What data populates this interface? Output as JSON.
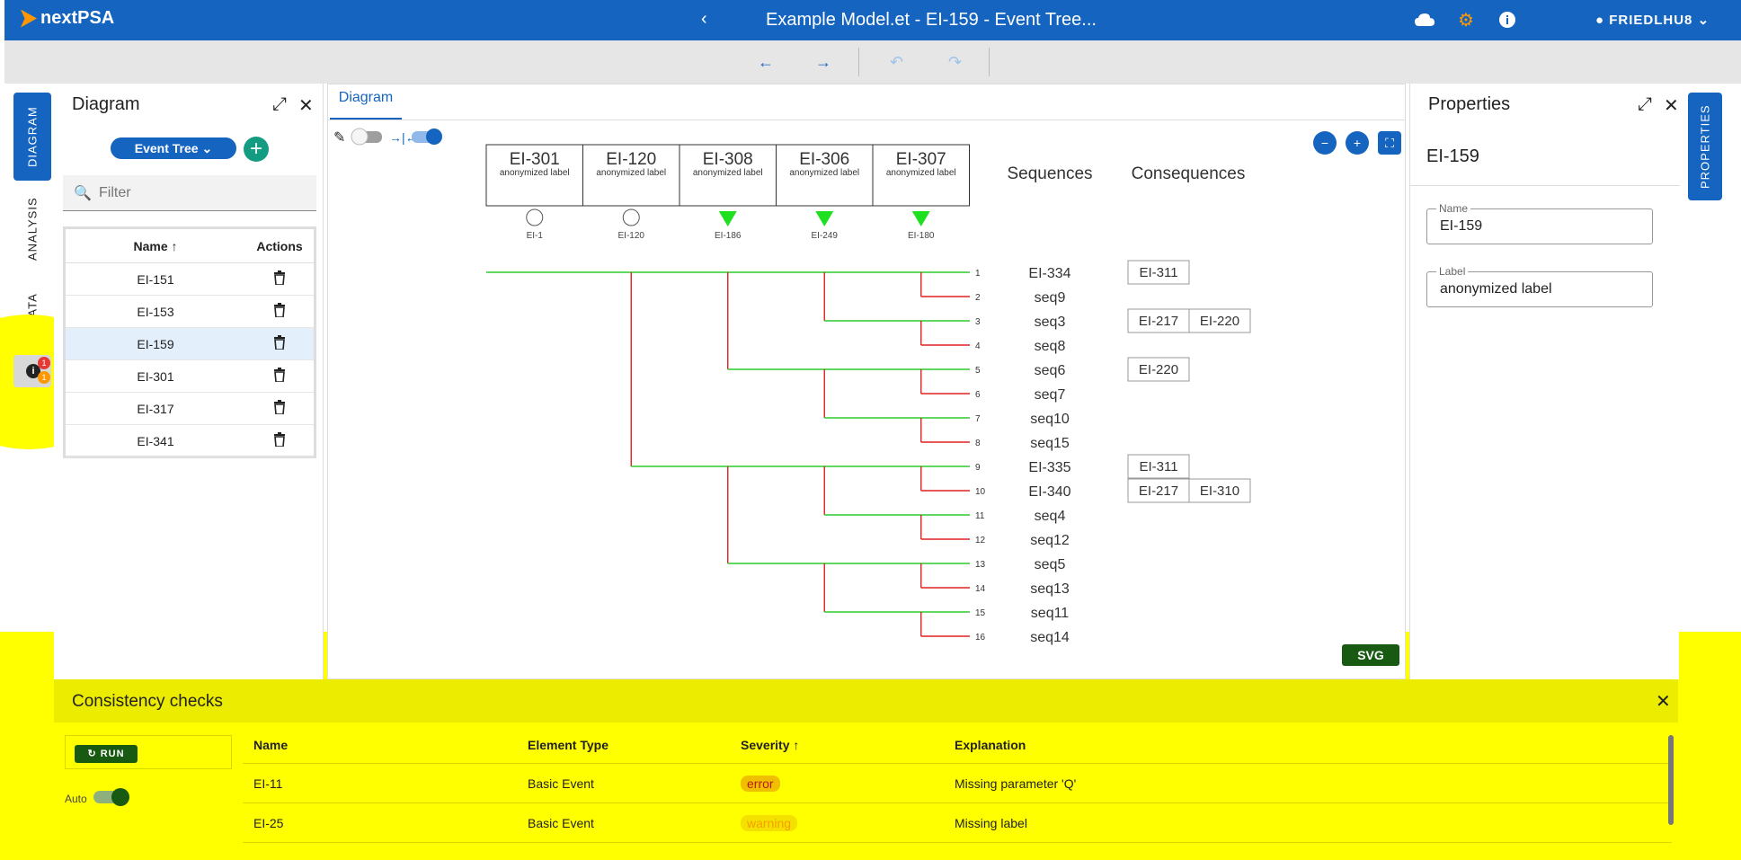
{
  "app": {
    "name": "nextPSA",
    "title": "Example Model.et - EI-159 - Event Tree...",
    "user": "FRIEDLHU8"
  },
  "left_tabs": [
    "DIAGRAM",
    "ANALYSIS",
    "DATA"
  ],
  "info_badges": {
    "errors": "1",
    "warnings": "1"
  },
  "diagram_panel": {
    "title": "Diagram",
    "type_button": "Event Tree",
    "filter_placeholder": "Filter",
    "columns": {
      "name": "Name",
      "actions": "Actions"
    },
    "rows": [
      "EI-151",
      "EI-153",
      "EI-159",
      "EI-301",
      "EI-317",
      "EI-341"
    ],
    "selected": "EI-159"
  },
  "canvas": {
    "tab": "Diagram",
    "headers": [
      {
        "id": "EI-301",
        "label": "anonymized label"
      },
      {
        "id": "EI-120",
        "label": "anonymized label"
      },
      {
        "id": "EI-308",
        "label": "anonymized label"
      },
      {
        "id": "EI-306",
        "label": "anonymized label"
      },
      {
        "id": "EI-307",
        "label": "anonymized label"
      }
    ],
    "gate_labels": [
      "EI-1",
      "EI-120",
      "EI-186",
      "EI-249",
      "EI-180"
    ],
    "sequences_title": "Sequences",
    "consequences_title": "Consequences",
    "sequences": [
      {
        "n": "1",
        "name": "EI-334",
        "cons": [
          "EI-311"
        ]
      },
      {
        "n": "2",
        "name": "seq9",
        "cons": []
      },
      {
        "n": "3",
        "name": "seq3",
        "cons": [
          "EI-217",
          "EI-220"
        ]
      },
      {
        "n": "4",
        "name": "seq8",
        "cons": []
      },
      {
        "n": "5",
        "name": "seq6",
        "cons": [
          "EI-220"
        ]
      },
      {
        "n": "6",
        "name": "seq7",
        "cons": []
      },
      {
        "n": "7",
        "name": "seq10",
        "cons": []
      },
      {
        "n": "8",
        "name": "seq15",
        "cons": []
      },
      {
        "n": "9",
        "name": "EI-335",
        "cons": [
          "EI-311"
        ]
      },
      {
        "n": "10",
        "name": "EI-340",
        "cons": [
          "EI-217",
          "EI-310"
        ]
      },
      {
        "n": "11",
        "name": "seq4",
        "cons": []
      },
      {
        "n": "12",
        "name": "seq12",
        "cons": []
      },
      {
        "n": "13",
        "name": "seq5",
        "cons": []
      },
      {
        "n": "14",
        "name": "seq13",
        "cons": []
      },
      {
        "n": "15",
        "name": "seq11",
        "cons": []
      },
      {
        "n": "16",
        "name": "seq14",
        "cons": []
      }
    ],
    "svg_button": "SVG"
  },
  "properties": {
    "title": "Properties",
    "element": "EI-159",
    "name_label": "Name",
    "name_value": "EI-159",
    "label_label": "Label",
    "label_value": "anonymized label",
    "tab": "PROPERTIES"
  },
  "consistency": {
    "title": "Consistency checks",
    "run_label": "RUN",
    "auto_label": "Auto",
    "columns": [
      "Name",
      "Element Type",
      "Severity",
      "Explanation"
    ],
    "rows": [
      {
        "name": "EI-11",
        "type": "Basic Event",
        "severity": "error",
        "explanation": "Missing parameter 'Q'"
      },
      {
        "name": "EI-25",
        "type": "Basic Event",
        "severity": "warning",
        "explanation": "Missing label"
      }
    ]
  }
}
